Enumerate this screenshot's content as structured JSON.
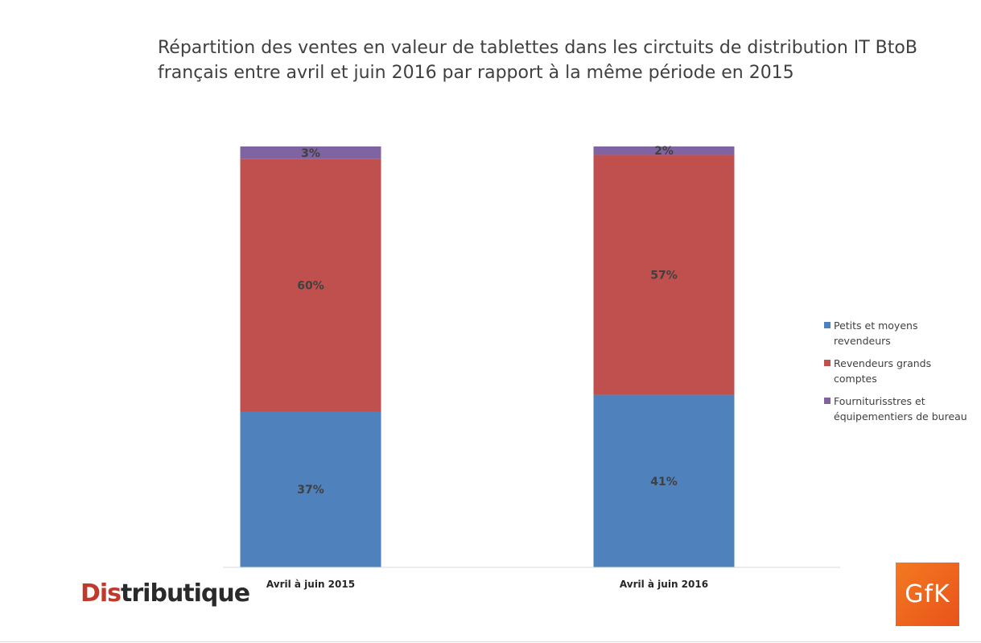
{
  "chart_data": {
    "type": "bar",
    "stacked": true,
    "percent": true,
    "title_line1": "Répartition des ventes en valeur de tablettes dans les circtuits de distribution IT BtoB",
    "title_line2": "français entre avril et juin 2016 par rapport à la même période en 2015",
    "categories": [
      "Avril à juin 2015",
      "Avril à juin 2016"
    ],
    "series": [
      {
        "name": "Petits et moyens revendeurs",
        "values": [
          37,
          41
        ],
        "labels": [
          "37%",
          "41%"
        ],
        "color": "#4f81bd",
        "legend_line1": "Petits et moyens",
        "legend_line2": "revendeurs"
      },
      {
        "name": "Revendeurs grands comptes",
        "values": [
          60,
          57
        ],
        "labels": [
          "60%",
          "57%"
        ],
        "color": "#c0504d",
        "legend_line1": "Revendeurs grands",
        "legend_line2": "comptes"
      },
      {
        "name": "Fourniturisstres et équipementiers de bureau",
        "values": [
          3,
          2
        ],
        "labels": [
          "3%",
          "2%"
        ],
        "color": "#8064a2",
        "legend_line1": "Fourniturisstres et",
        "legend_line2": "équipementiers de bureau"
      }
    ],
    "ylim": [
      0,
      100
    ],
    "legend_position": "right",
    "grid": false
  },
  "logos": {
    "distributique_red": "Dis",
    "distributique_rest": "tributique",
    "gfk": "GfK"
  }
}
